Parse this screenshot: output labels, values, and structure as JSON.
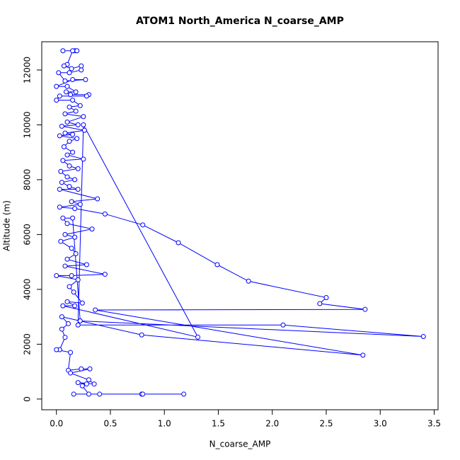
{
  "chart_data": {
    "type": "line",
    "title": "ATOM1 North_America N_coarse_AMP",
    "xlabel": "N_coarse_AMP",
    "ylabel": "Altitude (m)",
    "xlim": [
      -0.136,
      3.536
    ],
    "ylim": [
      -390,
      13030
    ],
    "xticks": [
      {
        "value": 0,
        "label": "0.0"
      },
      0.5,
      {
        "value": 1,
        "label": "1.0"
      },
      1.5,
      {
        "value": 2,
        "label": "2.0"
      },
      2.5,
      {
        "value": 3,
        "label": "3.0"
      },
      3.5
    ],
    "yticks": [
      0,
      2000,
      4000,
      6000,
      8000,
      10000,
      12000
    ],
    "series": [
      {
        "name": "N_coarse_AMP",
        "color": "#0000ff",
        "x": [
          0.06,
          0.17,
          0.19,
          0.15,
          0.1,
          0.07,
          0.14,
          0.23,
          0.23,
          0.12,
          0.02,
          0.08,
          0.27,
          0.15,
          0.0,
          0.1,
          0.18,
          0.09,
          0.13,
          0.3,
          0.28,
          0.03,
          0.0,
          0.15,
          0.22,
          0.12,
          0.18,
          0.08,
          0.25,
          0.1,
          0.2,
          0.05,
          0.26,
          0.08,
          0.15,
          0.03,
          0.19,
          0.12,
          0.07,
          0.15,
          0.1,
          0.25,
          0.06,
          0.12,
          0.2,
          0.04,
          0.1,
          0.17,
          0.05,
          0.12,
          0.2,
          0.03,
          0.38,
          0.14,
          0.22,
          0.03,
          0.17,
          0.45,
          0.8,
          1.13,
          1.49,
          1.78,
          2.5,
          2.44,
          2.86,
          0.36,
          2.84,
          0.79,
          0.22,
          0.15,
          0.06,
          0.1,
          0.33,
          0.08,
          0.17,
          0.04,
          0.14,
          0.18,
          0.1,
          0.28,
          0.08,
          0.45,
          0.14,
          0.0,
          0.2,
          0.12,
          0.16,
          0.24,
          0.1,
          0.17,
          0.06,
          1.31,
          0.25,
          0.2,
          2.1,
          3.4,
          0.22,
          0.05,
          0.11,
          0.05,
          0.08,
          0.03,
          0.0,
          0.13,
          0.11,
          0.23,
          0.31,
          0.13,
          0.3,
          0.35,
          0.2,
          0.28,
          0.24,
          0.3,
          0.4,
          0.16,
          0.79,
          0.8,
          1.18
        ],
        "y": [
          12700,
          12700,
          12700,
          12700,
          12200,
          12150,
          12050,
          12150,
          12000,
          11900,
          11900,
          11600,
          11650,
          11650,
          11400,
          11400,
          11200,
          11200,
          11100,
          11100,
          11050,
          11050,
          10900,
          10900,
          10700,
          10650,
          10500,
          10400,
          10300,
          10100,
          10000,
          9950,
          9800,
          9700,
          9650,
          9600,
          9500,
          9400,
          9200,
          9000,
          8900,
          8750,
          8700,
          8500,
          8400,
          8300,
          8100,
          8000,
          7900,
          7750,
          7650,
          7650,
          7300,
          7200,
          7100,
          7000,
          6950,
          6750,
          6350,
          5700,
          4900,
          4300,
          3700,
          3480,
          3270,
          3250,
          1600,
          2340,
          2850,
          6600,
          6600,
          6400,
          6200,
          6000,
          5900,
          5750,
          5500,
          5300,
          5100,
          4900,
          4850,
          4550,
          4500,
          4500,
          4350,
          4100,
          3900,
          3500,
          3550,
          3400,
          3400,
          2260,
          10000,
          2700,
          2700,
          2280,
          2850,
          3000,
          2750,
          2550,
          2250,
          1800,
          1800,
          1700,
          1050,
          1100,
          1100,
          950,
          700,
          550,
          600,
          550,
          480,
          180,
          180,
          180,
          180,
          180,
          180
        ]
      }
    ]
  }
}
